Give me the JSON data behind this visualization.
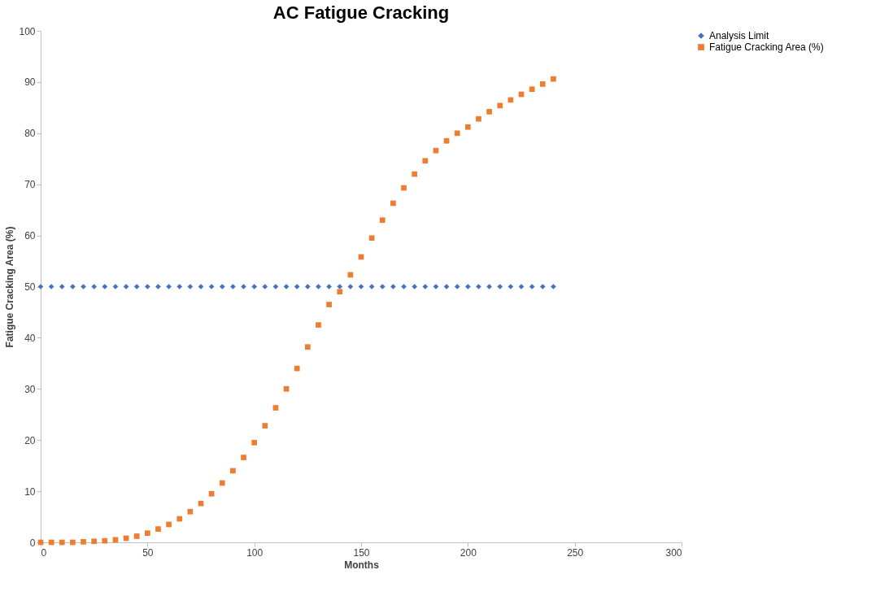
{
  "chart_data": {
    "type": "scatter",
    "title": "AC Fatigue Cracking",
    "xlabel": "Months",
    "ylabel": "Fatigue Cracking Area (%)",
    "xlim": [
      0,
      300
    ],
    "xticks": [
      0,
      50,
      100,
      150,
      200,
      250,
      300
    ],
    "ylim": [
      0,
      100
    ],
    "yticks": [
      0,
      10,
      20,
      30,
      40,
      50,
      60,
      70,
      80,
      90,
      100
    ],
    "grid": false,
    "legend": "right",
    "series": [
      {
        "name": "Analysis Limit",
        "color": "#4472c4",
        "marker": "diamond",
        "x": [
          0,
          5,
          10,
          15,
          20,
          25,
          30,
          35,
          40,
          45,
          50,
          55,
          60,
          65,
          70,
          75,
          80,
          85,
          90,
          95,
          100,
          105,
          110,
          115,
          120,
          125,
          130,
          135,
          140,
          145,
          150,
          155,
          160,
          165,
          170,
          175,
          180,
          185,
          190,
          195,
          200,
          205,
          210,
          215,
          220,
          225,
          230,
          235,
          240
        ],
        "values": [
          50,
          50,
          50,
          50,
          50,
          50,
          50,
          50,
          50,
          50,
          50,
          50,
          50,
          50,
          50,
          50,
          50,
          50,
          50,
          50,
          50,
          50,
          50,
          50,
          50,
          50,
          50,
          50,
          50,
          50,
          50,
          50,
          50,
          50,
          50,
          50,
          50,
          50,
          50,
          50,
          50,
          50,
          50,
          50,
          50,
          50,
          50,
          50,
          50
        ]
      },
      {
        "name": "Fatigue Cracking Area (%)",
        "color": "#ed7d31",
        "marker": "square",
        "x": [
          0,
          5,
          10,
          15,
          20,
          25,
          30,
          35,
          40,
          45,
          50,
          55,
          60,
          65,
          70,
          75,
          80,
          85,
          90,
          95,
          100,
          105,
          110,
          115,
          120,
          125,
          130,
          135,
          140,
          145,
          150,
          155,
          160,
          165,
          170,
          175,
          180,
          185,
          190,
          195,
          200,
          205,
          210,
          215,
          220,
          225,
          230,
          235,
          240
        ],
        "values": [
          0,
          0,
          0,
          0,
          0.1,
          0.2,
          0.3,
          0.5,
          0.8,
          1.2,
          1.8,
          2.6,
          3.5,
          4.6,
          6.0,
          7.6,
          9.5,
          11.6,
          14.0,
          16.6,
          19.5,
          22.8,
          26.3,
          30.0,
          34.0,
          38.2,
          42.5,
          46.5,
          49.0,
          52.3,
          55.8,
          59.5,
          63.0,
          66.3,
          69.3,
          72.0,
          74.6,
          76.6,
          78.5,
          80.0,
          81.2,
          82.8,
          84.2,
          85.4,
          86.5,
          87.6,
          88.6,
          89.6,
          90.6
        ]
      }
    ]
  }
}
